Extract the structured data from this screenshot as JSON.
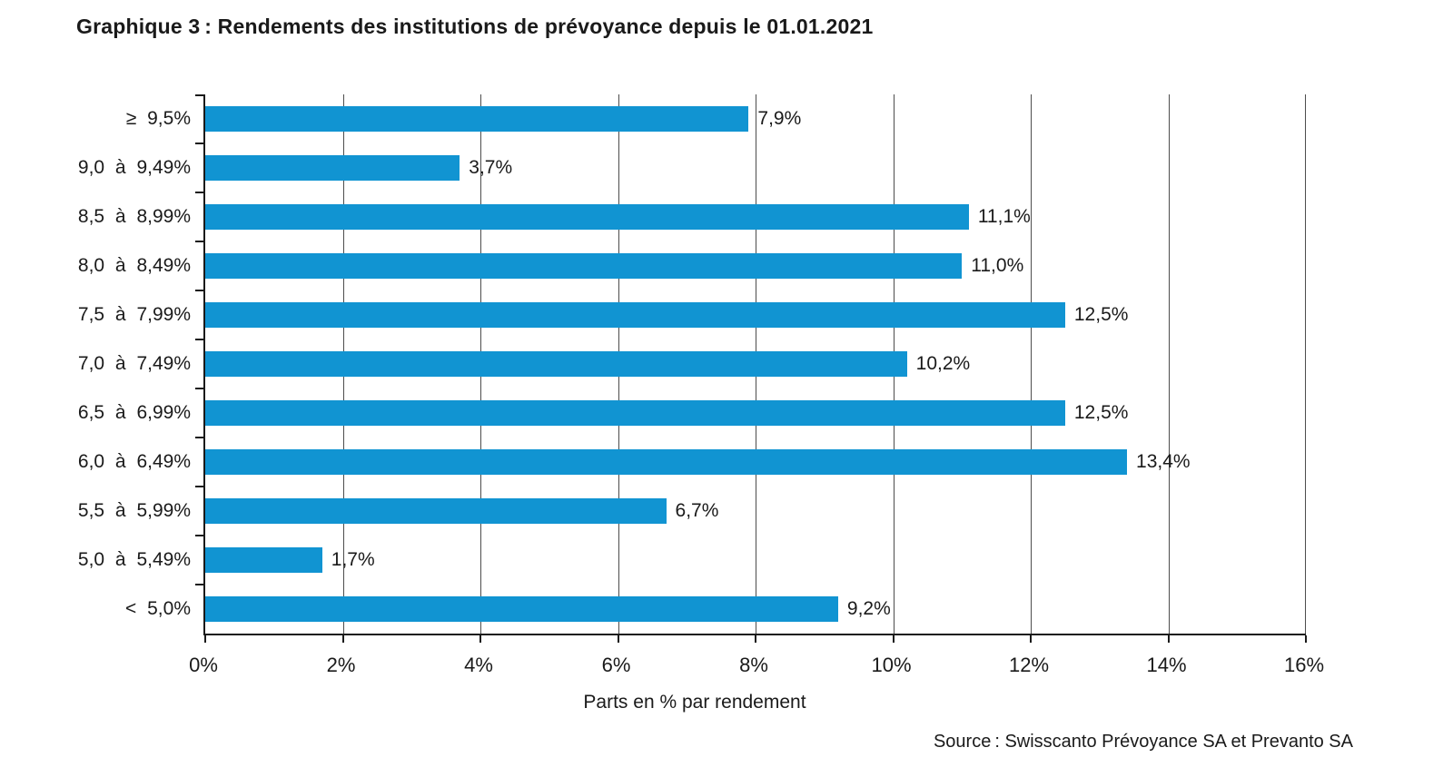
{
  "chart": {
    "title": "Graphique 3 : Rendements des institutions de prévoyance depuis le 01.01.2021",
    "source": "Source : Swisscanto Prévoyance SA et Prevanto SA"
  },
  "chart_data": {
    "type": "bar",
    "orientation": "horizontal",
    "title": "Graphique 3 : Rendements des institutions de prévoyance depuis le 01.01.2021",
    "categories": [
      "≥ 9,5%",
      "9,0 à 9,49%",
      "8,5 à 8,99%",
      "8,0 à 8,49%",
      "7,5 à 7,99%",
      "7,0 à 7,49%",
      "6,5 à 6,99%",
      "6,0 à 6,49%",
      "5,5 à 5,99%",
      "5,0 à 5,49%",
      "< 5,0%"
    ],
    "values": [
      7.9,
      3.7,
      11.1,
      11.0,
      12.5,
      10.2,
      12.5,
      13.4,
      6.7,
      1.7,
      9.2
    ],
    "value_labels": [
      "7,9%",
      "3,7%",
      "11,1%",
      "11,0%",
      "12,5%",
      "10,2%",
      "12,5%",
      "13,4%",
      "6,7%",
      "1,7%",
      "9,2%"
    ],
    "xlabel": "Parts en % par rendement",
    "ylabel": "",
    "xlim": [
      0,
      16
    ],
    "x_ticks": [
      0,
      2,
      4,
      6,
      8,
      10,
      12,
      14,
      16
    ],
    "x_tick_labels": [
      "0%",
      "2%",
      "4%",
      "6%",
      "8%",
      "10%",
      "12%",
      "14%",
      "16%"
    ],
    "grid": "vertical",
    "legend": "none",
    "bar_color": "#1194d2"
  }
}
